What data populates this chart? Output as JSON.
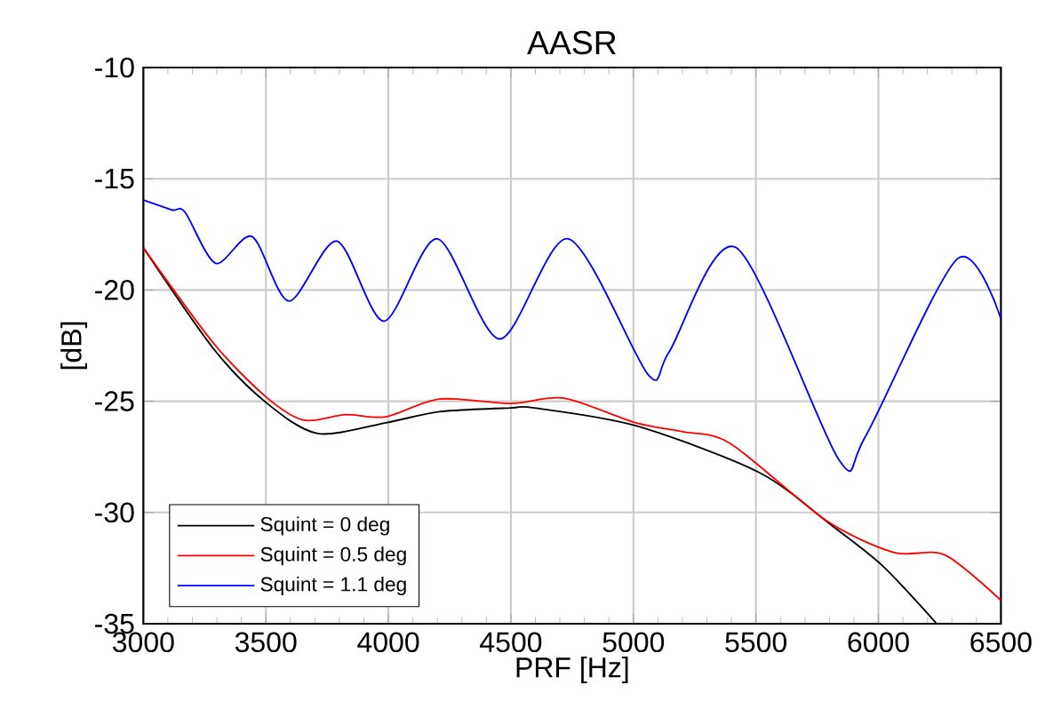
{
  "chart_data": {
    "type": "line",
    "title": "AASR",
    "xlabel": "PRF [Hz]",
    "ylabel": "[dB]",
    "xlim": [
      3000,
      6500
    ],
    "ylim": [
      -35,
      -10
    ],
    "xticks": [
      3000,
      3500,
      4000,
      4500,
      5000,
      5500,
      6000,
      6500
    ],
    "yticks": [
      -35,
      -30,
      -25,
      -20,
      -15,
      -10
    ],
    "grid": true,
    "legend": "bottom left",
    "series": [
      {
        "name": "Squint = 0 deg",
        "color": "#000000",
        "x": [
          3000,
          3287,
          3500,
          3711,
          3990,
          4208,
          4500,
          4596,
          5010,
          5513,
          5811,
          6017,
          6238
        ],
        "values": [
          -18.1,
          -22.65,
          -25.05,
          -26.45,
          -25.97,
          -25.47,
          -25.3,
          -25.3,
          -26.1,
          -28.2,
          -30.6,
          -32.4,
          -35.0
        ]
      },
      {
        "name": "Squint = 0.5 deg",
        "color": "#ff0000",
        "x": [
          3000,
          3287,
          3500,
          3655,
          3825,
          3990,
          4208,
          4500,
          4717,
          5010,
          5202,
          5396,
          5785,
          6064,
          6270,
          6500
        ],
        "values": [
          -18.1,
          -22.4,
          -24.8,
          -25.85,
          -25.6,
          -25.7,
          -24.9,
          -25.1,
          -24.86,
          -25.97,
          -26.37,
          -26.9,
          -30.35,
          -31.8,
          -31.9,
          -33.95
        ]
      },
      {
        "name": "Squint = 1.1 deg",
        "color": "#0000ff",
        "x": [
          3000,
          3116,
          3170,
          3295,
          3444,
          3594,
          3790,
          3982,
          4200,
          4455,
          4735,
          5060,
          5145,
          5420,
          5837,
          5946,
          6322,
          6500
        ],
        "values": [
          -15.96,
          -16.4,
          -16.5,
          -18.8,
          -17.6,
          -20.5,
          -17.8,
          -21.4,
          -17.7,
          -22.2,
          -17.7,
          -23.8,
          -22.8,
          -18.1,
          -27.6,
          -26.6,
          -18.6,
          -21.3
        ]
      }
    ]
  }
}
